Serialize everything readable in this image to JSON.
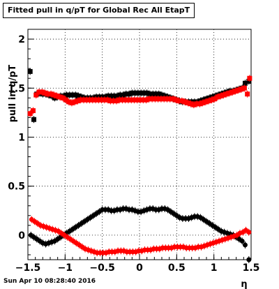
{
  "chart_data": {
    "type": "scatter",
    "title": "Fitted pull in q/pT for Global Rec All EtapT",
    "xlabel": "η",
    "ylabel": "pull in q/pT",
    "xlim": [
      -1.5,
      1.5
    ],
    "ylim": [
      -0.25,
      2.1
    ],
    "x_ticks": [
      -1.5,
      -1,
      -0.5,
      0,
      0.5,
      1,
      1.5
    ],
    "x_tick_labels": [
      "−1.5",
      "−1",
      "−0.5",
      "0",
      "0.5",
      "1",
      "1.5"
    ],
    "y_ticks": [
      0,
      0.5,
      1,
      1.5,
      2
    ],
    "y_tick_labels": [
      "0",
      "0.5",
      "1",
      "1.5",
      "2"
    ],
    "grid": true,
    "series": [
      {
        "color": "#000000",
        "marker": "square",
        "x": [
          -1.47,
          -1.42,
          -1.38,
          -1.34,
          -1.3,
          -1.26,
          -1.22,
          -1.18,
          -1.14,
          -1.1,
          -1.06,
          -1.02,
          -0.98,
          -0.94,
          -0.9,
          -0.86,
          -0.82,
          -0.78,
          -0.74,
          -0.7,
          -0.66,
          -0.62,
          -0.58,
          -0.54,
          -0.5,
          -0.46,
          -0.42,
          -0.38,
          -0.34,
          -0.3,
          -0.26,
          -0.22,
          -0.18,
          -0.14,
          -0.1,
          -0.06,
          -0.02,
          0.02,
          0.06,
          0.1,
          0.14,
          0.18,
          0.22,
          0.26,
          0.3,
          0.34,
          0.38,
          0.42,
          0.46,
          0.5,
          0.54,
          0.58,
          0.62,
          0.66,
          0.7,
          0.74,
          0.78,
          0.82,
          0.86,
          0.9,
          0.94,
          0.98,
          1.02,
          1.06,
          1.1,
          1.14,
          1.18,
          1.22,
          1.26,
          1.3,
          1.34,
          1.38,
          1.42,
          1.47
        ],
        "y": [
          1.67,
          1.18,
          1.44,
          1.45,
          1.44,
          1.44,
          1.43,
          1.42,
          1.4,
          1.41,
          1.42,
          1.42,
          1.43,
          1.43,
          1.43,
          1.43,
          1.42,
          1.41,
          1.4,
          1.4,
          1.4,
          1.4,
          1.41,
          1.41,
          1.41,
          1.41,
          1.42,
          1.42,
          1.42,
          1.42,
          1.43,
          1.43,
          1.44,
          1.44,
          1.45,
          1.45,
          1.45,
          1.45,
          1.45,
          1.45,
          1.44,
          1.44,
          1.44,
          1.44,
          1.43,
          1.42,
          1.41,
          1.4,
          1.39,
          1.38,
          1.37,
          1.36,
          1.36,
          1.36,
          1.36,
          1.36,
          1.36,
          1.37,
          1.38,
          1.39,
          1.4,
          1.41,
          1.42,
          1.43,
          1.44,
          1.45,
          1.46,
          1.47,
          1.47,
          1.48,
          1.49,
          1.5,
          1.55,
          1.57
        ]
      },
      {
        "color": "#ff0000",
        "marker": "square",
        "x": [
          -1.47,
          -1.43,
          -1.39,
          -1.35,
          -1.31,
          -1.27,
          -1.23,
          -1.19,
          -1.15,
          -1.11,
          -1.07,
          -1.03,
          -0.99,
          -0.95,
          -0.91,
          -0.87,
          -0.83,
          -0.79,
          -0.75,
          -0.71,
          -0.67,
          -0.63,
          -0.59,
          -0.55,
          -0.51,
          -0.47,
          -0.43,
          -0.39,
          -0.35,
          -0.31,
          -0.27,
          -0.23,
          -0.19,
          -0.15,
          -0.11,
          -0.07,
          -0.03,
          0.01,
          0.05,
          0.09,
          0.13,
          0.17,
          0.21,
          0.25,
          0.29,
          0.33,
          0.37,
          0.41,
          0.45,
          0.49,
          0.53,
          0.57,
          0.61,
          0.65,
          0.69,
          0.73,
          0.77,
          0.81,
          0.85,
          0.89,
          0.93,
          0.97,
          1.01,
          1.05,
          1.09,
          1.13,
          1.17,
          1.21,
          1.25,
          1.29,
          1.33,
          1.37,
          1.41,
          1.45,
          1.48
        ],
        "y": [
          1.24,
          1.27,
          1.43,
          1.46,
          1.46,
          1.45,
          1.44,
          1.44,
          1.43,
          1.42,
          1.41,
          1.4,
          1.38,
          1.36,
          1.35,
          1.36,
          1.37,
          1.38,
          1.38,
          1.38,
          1.38,
          1.38,
          1.38,
          1.38,
          1.38,
          1.38,
          1.38,
          1.37,
          1.37,
          1.37,
          1.38,
          1.38,
          1.38,
          1.38,
          1.38,
          1.38,
          1.38,
          1.38,
          1.38,
          1.38,
          1.39,
          1.39,
          1.39,
          1.39,
          1.39,
          1.39,
          1.39,
          1.39,
          1.39,
          1.38,
          1.37,
          1.37,
          1.36,
          1.35,
          1.34,
          1.33,
          1.34,
          1.34,
          1.35,
          1.36,
          1.37,
          1.38,
          1.39,
          1.41,
          1.42,
          1.43,
          1.44,
          1.45,
          1.46,
          1.47,
          1.48,
          1.49,
          1.5,
          1.44,
          1.6
        ]
      },
      {
        "color": "#000000",
        "marker": "circle",
        "x": [
          -1.46,
          -1.42,
          -1.38,
          -1.34,
          -1.3,
          -1.26,
          -1.22,
          -1.18,
          -1.14,
          -1.1,
          -1.06,
          -1.02,
          -0.98,
          -0.94,
          -0.9,
          -0.86,
          -0.82,
          -0.78,
          -0.74,
          -0.7,
          -0.66,
          -0.62,
          -0.58,
          -0.54,
          -0.5,
          -0.46,
          -0.42,
          -0.38,
          -0.34,
          -0.3,
          -0.26,
          -0.22,
          -0.18,
          -0.14,
          -0.1,
          -0.06,
          -0.02,
          0.02,
          0.06,
          0.1,
          0.14,
          0.18,
          0.22,
          0.26,
          0.3,
          0.34,
          0.38,
          0.42,
          0.46,
          0.5,
          0.54,
          0.58,
          0.62,
          0.66,
          0.7,
          0.74,
          0.78,
          0.82,
          0.86,
          0.9,
          0.94,
          0.98,
          1.02,
          1.06,
          1.1,
          1.14,
          1.18,
          1.22,
          1.26,
          1.3,
          1.34,
          1.38,
          1.42,
          1.47
        ],
        "y": [
          0.0,
          -0.02,
          -0.04,
          -0.06,
          -0.08,
          -0.09,
          -0.08,
          -0.07,
          -0.06,
          -0.04,
          -0.02,
          0.0,
          0.02,
          0.04,
          0.06,
          0.08,
          0.1,
          0.12,
          0.14,
          0.16,
          0.18,
          0.2,
          0.22,
          0.24,
          0.26,
          0.26,
          0.26,
          0.25,
          0.25,
          0.26,
          0.26,
          0.27,
          0.27,
          0.26,
          0.26,
          0.25,
          0.24,
          0.24,
          0.25,
          0.26,
          0.27,
          0.27,
          0.26,
          0.26,
          0.27,
          0.27,
          0.26,
          0.24,
          0.22,
          0.2,
          0.18,
          0.17,
          0.17,
          0.17,
          0.18,
          0.19,
          0.19,
          0.18,
          0.16,
          0.14,
          0.12,
          0.1,
          0.08,
          0.06,
          0.04,
          0.03,
          0.02,
          0.01,
          0.0,
          -0.02,
          -0.04,
          -0.06,
          -0.1,
          -0.25
        ]
      },
      {
        "color": "#ff0000",
        "marker": "circle",
        "x": [
          -1.45,
          -1.41,
          -1.37,
          -1.33,
          -1.29,
          -1.25,
          -1.21,
          -1.17,
          -1.13,
          -1.09,
          -1.05,
          -1.01,
          -0.97,
          -0.93,
          -0.89,
          -0.85,
          -0.81,
          -0.77,
          -0.73,
          -0.69,
          -0.65,
          -0.61,
          -0.57,
          -0.53,
          -0.49,
          -0.45,
          -0.41,
          -0.37,
          -0.33,
          -0.29,
          -0.25,
          -0.21,
          -0.17,
          -0.13,
          -0.09,
          -0.05,
          -0.01,
          0.03,
          0.07,
          0.11,
          0.15,
          0.19,
          0.23,
          0.27,
          0.31,
          0.35,
          0.39,
          0.43,
          0.47,
          0.51,
          0.55,
          0.59,
          0.63,
          0.67,
          0.71,
          0.75,
          0.79,
          0.83,
          0.87,
          0.91,
          0.95,
          0.99,
          1.03,
          1.07,
          1.11,
          1.15,
          1.19,
          1.23,
          1.27,
          1.31,
          1.35,
          1.39,
          1.43,
          1.47
        ],
        "y": [
          0.16,
          0.14,
          0.12,
          0.1,
          0.09,
          0.08,
          0.07,
          0.06,
          0.05,
          0.04,
          0.02,
          0.0,
          -0.02,
          -0.04,
          -0.06,
          -0.08,
          -0.1,
          -0.12,
          -0.14,
          -0.15,
          -0.16,
          -0.17,
          -0.18,
          -0.18,
          -0.18,
          -0.18,
          -0.17,
          -0.17,
          -0.17,
          -0.16,
          -0.16,
          -0.16,
          -0.17,
          -0.17,
          -0.17,
          -0.17,
          -0.16,
          -0.16,
          -0.15,
          -0.15,
          -0.15,
          -0.14,
          -0.14,
          -0.14,
          -0.13,
          -0.13,
          -0.13,
          -0.13,
          -0.12,
          -0.12,
          -0.12,
          -0.12,
          -0.13,
          -0.13,
          -0.13,
          -0.13,
          -0.12,
          -0.12,
          -0.11,
          -0.1,
          -0.09,
          -0.08,
          -0.07,
          -0.06,
          -0.05,
          -0.04,
          -0.03,
          -0.02,
          -0.01,
          0.0,
          0.02,
          0.03,
          0.05,
          0.03
        ]
      }
    ]
  },
  "page": {
    "title": "Fitted pull in q/pT for Global Rec All EtapT",
    "timestamp": "Sun Apr 10 08:28:40 2016"
  }
}
